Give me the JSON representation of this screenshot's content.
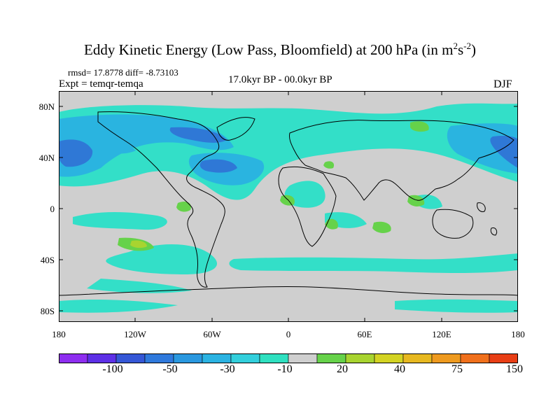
{
  "title": {
    "main": "Eddy Kinetic Energy (Low Pass, Bloomfield) at 200 hPa (in m",
    "sup1": "2",
    "mid": "s",
    "sup2": "-2",
    "end": ")"
  },
  "stats": "rmsd= 17.8778 diff= -8.73103",
  "expt": "Expt = temqr-temqa",
  "period": "17.0kyr BP - 00.0kyr BP",
  "season": "DJF",
  "y_axis_labels": [
    "80N",
    "40N",
    "0",
    "40S",
    "80S"
  ],
  "x_axis_labels": [
    "180",
    "120W",
    "60W",
    "0",
    "60E",
    "120E",
    "180"
  ],
  "colorbar": {
    "labels": [
      "-100",
      "-50",
      "-30",
      "-10",
      "20",
      "40",
      "75",
      "150"
    ],
    "colors": [
      "#8e2ef0",
      "#5d30e6",
      "#3557d6",
      "#2f79dc",
      "#2a98df",
      "#2bb3e2",
      "#33cfdc",
      "#2fe0c0",
      "#cfcfcf",
      "#66d24a",
      "#a8d430",
      "#d3d323",
      "#e7b820",
      "#ee9a1f",
      "#f0701c",
      "#e83e15"
    ]
  },
  "field_colors": {
    "land_mask": "#cfcfcf",
    "light_teal": "#33dfc8",
    "mid_blue": "#2ab4e0",
    "deep_blue": "#2f78d6",
    "green": "#66d24a",
    "yellow_green": "#a8d430"
  }
}
